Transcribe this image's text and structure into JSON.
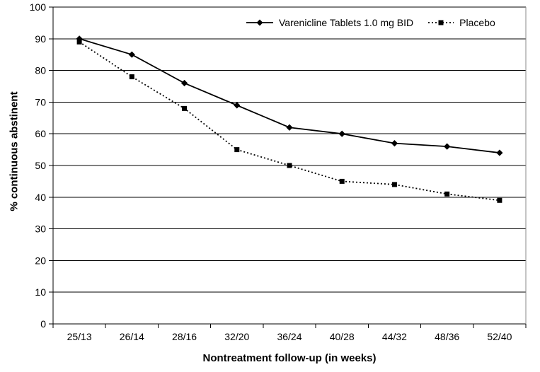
{
  "chart_data": {
    "type": "line",
    "title": "",
    "xlabel": "Nontreatment follow-up (in weeks)",
    "ylabel": "% continuous abstinent",
    "categories": [
      "25/13",
      "26/14",
      "28/16",
      "32/20",
      "36/24",
      "40/28",
      "44/32",
      "48/36",
      "52/40"
    ],
    "series": [
      {
        "name": "Varenicline Tablets 1.0 mg BID",
        "marker": "diamond",
        "line_style": "solid",
        "color": "#000000",
        "values": [
          90,
          85,
          76,
          69,
          62,
          60,
          57,
          56,
          54
        ]
      },
      {
        "name": "Placebo",
        "marker": "square",
        "line_style": "dotted",
        "color": "#000000",
        "values": [
          89,
          78,
          68,
          55,
          50,
          45,
          44,
          41,
          39
        ]
      }
    ],
    "ylim": [
      0,
      100
    ],
    "yticks": [
      0,
      10,
      20,
      30,
      40,
      50,
      60,
      70,
      80,
      90,
      100
    ],
    "grid": "horizontal",
    "legend_position": "top-inside",
    "colors": {
      "line": "#000000",
      "grid": "#000000",
      "plot_border": "#888888",
      "background": "#ffffff"
    }
  }
}
